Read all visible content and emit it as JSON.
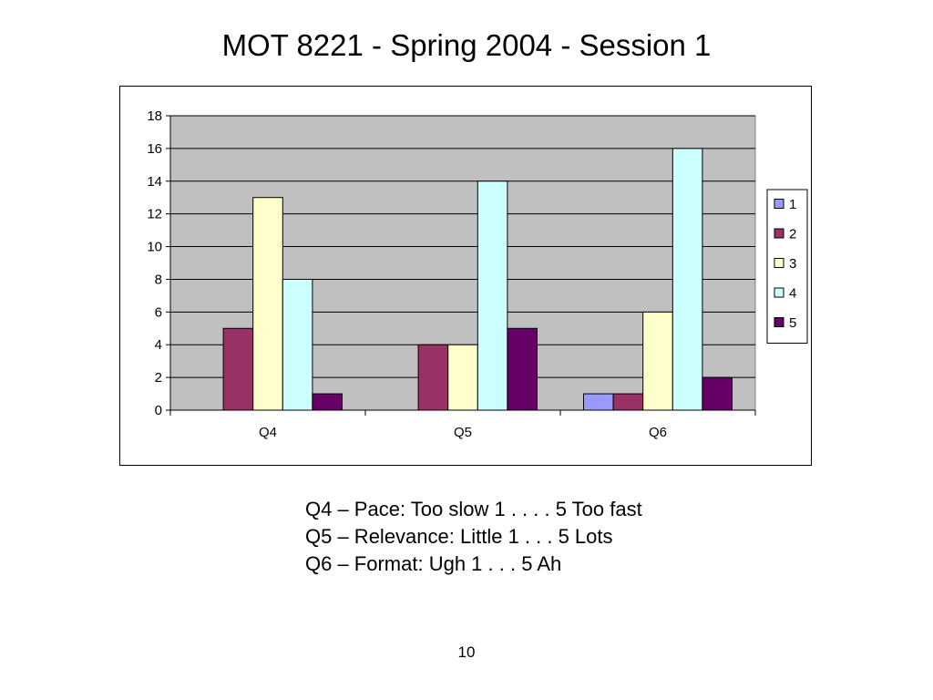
{
  "slide": {
    "title": "MOT 8221 - Spring 2004 - Session 1",
    "notes": [
      "Q4 – Pace: Too slow 1 . . . . 5 Too fast",
      "Q5 – Relevance: Little 1 . . . 5 Lots",
      "Q6 – Format: Ugh 1 . . . 5 Ah"
    ],
    "page_number": "10"
  },
  "chart_data": {
    "type": "bar",
    "title": "",
    "xlabel": "",
    "ylabel": "",
    "categories": [
      "Q4",
      "Q5",
      "Q6"
    ],
    "series": [
      {
        "name": "1",
        "color": "#9999FF",
        "values": [
          0,
          0,
          1
        ]
      },
      {
        "name": "2",
        "color": "#993366",
        "values": [
          5,
          4,
          1
        ]
      },
      {
        "name": "3",
        "color": "#FFFFCC",
        "values": [
          13,
          4,
          6
        ]
      },
      {
        "name": "4",
        "color": "#CCFFFF",
        "values": [
          8,
          14,
          16
        ]
      },
      {
        "name": "5",
        "color": "#660066",
        "values": [
          1,
          5,
          2
        ]
      }
    ],
    "ylim": [
      0,
      18
    ],
    "yticks": [
      "0",
      "2",
      "4",
      "6",
      "8",
      "10",
      "12",
      "14",
      "16",
      "18"
    ],
    "grid": true,
    "plot_background": "#C0C0C0",
    "legend_position": "right"
  }
}
